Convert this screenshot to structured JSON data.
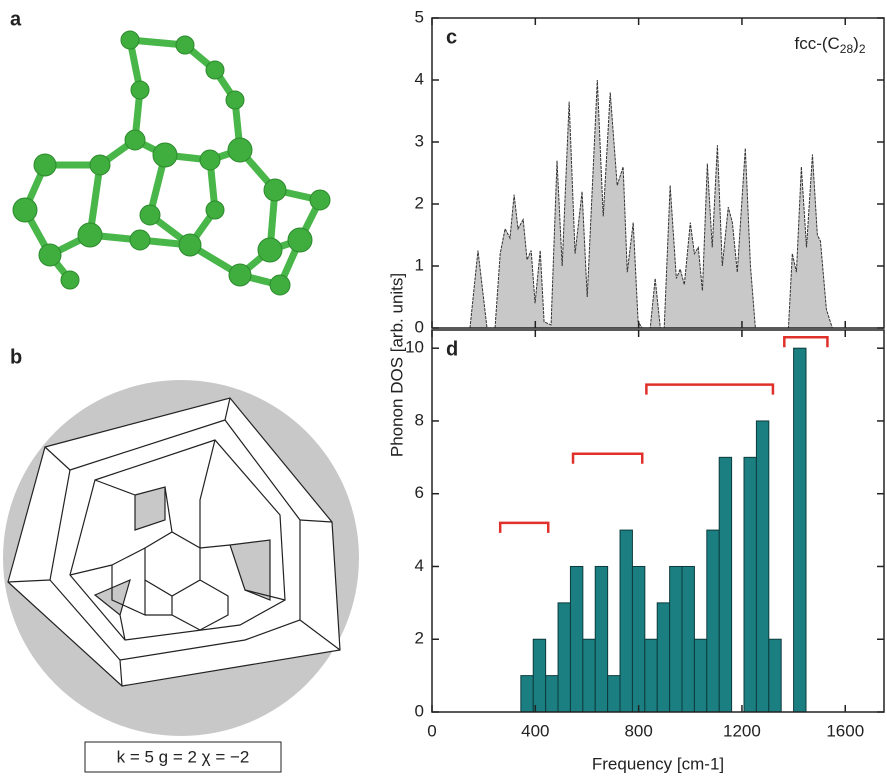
{
  "panels": [
    {
      "label": "a"
    },
    {
      "label": "b",
      "caption": "k = 5  g = 2  χ = −2"
    }
  ],
  "chart_data": [
    {
      "type": "area",
      "panel": "c",
      "ylabel": "Phonon DOS [arb. units]",
      "annotation": [
        "fcc-(C",
        "28",
        ")",
        "2"
      ],
      "color": "#c8c8c8",
      "xlim": [
        0,
        1750
      ],
      "ylim": [
        0,
        5
      ],
      "yticks": [
        0,
        1,
        2,
        3,
        4,
        5
      ],
      "x": [
        147,
        178,
        213,
        244,
        264,
        283,
        302,
        318,
        333,
        353,
        368,
        384,
        399,
        419,
        434,
        461,
        484,
        504,
        531,
        554,
        581,
        601,
        640,
        663,
        690,
        717,
        740,
        756,
        779,
        798,
        814,
        845,
        864,
        884,
        899,
        922,
        946,
        961,
        977,
        1000,
        1016,
        1031,
        1047,
        1066,
        1085,
        1105,
        1124,
        1147,
        1163,
        1182,
        1213,
        1233,
        1252,
        1380,
        1395,
        1411,
        1430,
        1450,
        1473,
        1492,
        1504,
        1527,
        1550
      ],
      "values": [
        0,
        1.25,
        0,
        0,
        1.2,
        1.6,
        1.45,
        2.15,
        1.6,
        1.75,
        1.1,
        1.25,
        0.4,
        1.25,
        0.1,
        0.05,
        2.7,
        1.0,
        3.65,
        1.2,
        2.2,
        0.5,
        4.0,
        1.8,
        3.8,
        2.3,
        2.6,
        0.9,
        1.7,
        0.1,
        0,
        0,
        0.8,
        0,
        0,
        2.3,
        0.8,
        0.95,
        0.7,
        1.7,
        1.2,
        1.3,
        0.6,
        2.65,
        1.3,
        2.95,
        1.0,
        1.95,
        1.7,
        0.9,
        2.9,
        1.0,
        0,
        0,
        1.2,
        0.9,
        2.6,
        1.3,
        2.8,
        1.5,
        1.4,
        0.3,
        0
      ]
    },
    {
      "type": "histogram",
      "panel": "d",
      "xlabel": "Frequency [cm-1]",
      "color": "#1b7f82",
      "xlim": [
        0,
        1750
      ],
      "xticks": [
        0,
        400,
        800,
        1200,
        1600
      ],
      "ylim": [
        0,
        10.5
      ],
      "yticks": [
        0,
        2,
        4,
        6,
        8,
        10
      ],
      "bins": [
        344,
        392,
        440,
        488,
        536,
        584,
        632,
        680,
        728,
        776,
        824,
        872,
        920,
        968,
        1016,
        1064,
        1112,
        1160,
        1208,
        1256,
        1304,
        1352,
        1400,
        1448
      ],
      "values": [
        1,
        2,
        1,
        3,
        4,
        2,
        4,
        1,
        5,
        4,
        2,
        3,
        4,
        4,
        2,
        5,
        7,
        0,
        7,
        8,
        2,
        0,
        10
      ],
      "bracket_color": "#e0302a",
      "brackets": [
        {
          "x": [
            264,
            450
          ],
          "y": 5.2
        },
        {
          "x": [
            546,
            814
          ],
          "y": 7.1
        },
        {
          "x": [
            830,
            1320
          ],
          "y": 9.0
        },
        {
          "x": [
            1364,
            1531
          ],
          "y": 10.3
        }
      ]
    }
  ]
}
